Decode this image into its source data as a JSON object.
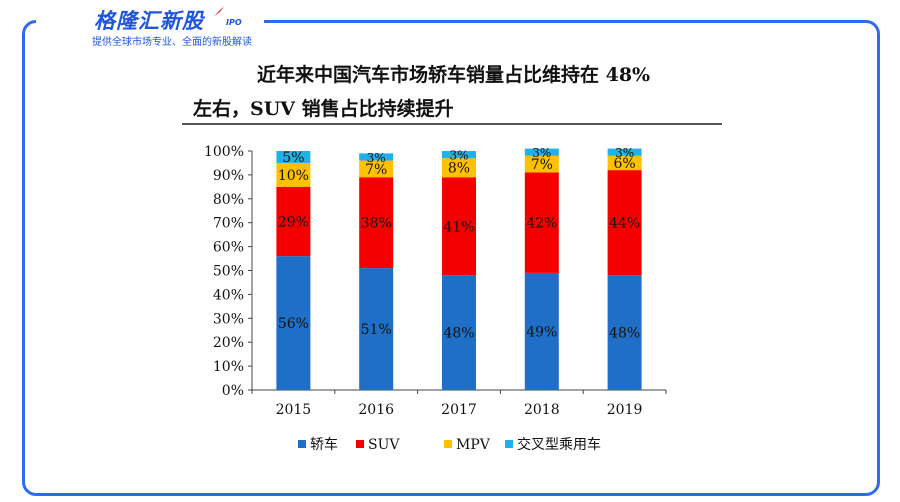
{
  "logo": {
    "name": "格隆汇新股",
    "badge": "IPO",
    "tagline": "提供全球市场专业、全面的新股解读"
  },
  "title": {
    "line1": "近年来中国汽车市场轿车销量占比维持在 48%",
    "line2": "左右，SUV 销售占比持续提升"
  },
  "colors": {
    "frame": "#2f6bf0",
    "brand": "#1f56e0"
  },
  "chart_data": {
    "type": "bar",
    "stacked": true,
    "percent": true,
    "categories": [
      "2015",
      "2016",
      "2017",
      "2018",
      "2019"
    ],
    "series": [
      {
        "name": "轿车",
        "color": "#1f6fc6",
        "values": [
          56,
          51,
          48,
          49,
          48
        ],
        "labels": [
          "56%",
          "51%",
          "48%",
          "49%",
          "48%"
        ]
      },
      {
        "name": "SUV",
        "color": "#f50000",
        "values": [
          29,
          38,
          41,
          42,
          44
        ],
        "labels": [
          "29%",
          "38%",
          "41%",
          "42%",
          "44%"
        ]
      },
      {
        "name": "MPV",
        "color": "#ffc000",
        "values": [
          10,
          7,
          8,
          7,
          6
        ],
        "labels": [
          "10%",
          "7%",
          "8%",
          "7%",
          "6%"
        ]
      },
      {
        "name": "交叉型乘用车",
        "color": "#21b1e6",
        "values": [
          5,
          3,
          3,
          3,
          3
        ],
        "labels": [
          "5%",
          "3%",
          "3%",
          "3%",
          "3%"
        ]
      }
    ],
    "yticks": [
      "0%",
      "10%",
      "20%",
      "30%",
      "40%",
      "50%",
      "60%",
      "70%",
      "80%",
      "90%",
      "100%"
    ],
    "ylim": [
      0,
      100
    ],
    "grid": false,
    "legend_position": "bottom"
  }
}
